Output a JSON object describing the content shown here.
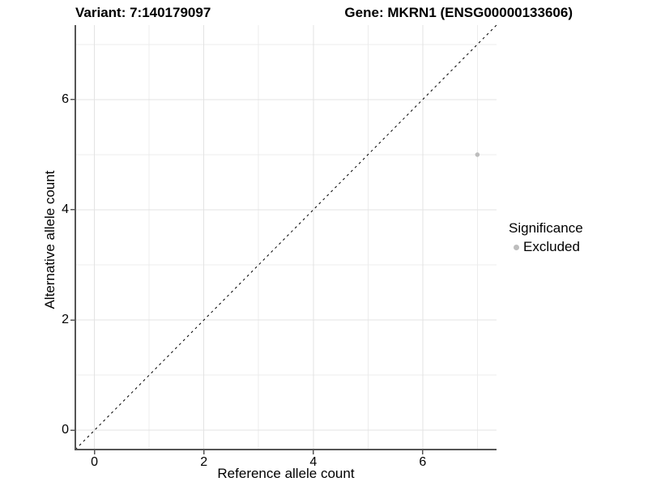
{
  "title": {
    "variant": "Variant: 7:140179097",
    "gene": "Gene: MKRN1 (ENSG00000133606)"
  },
  "axes": {
    "x": {
      "label": "Reference allele count"
    },
    "y": {
      "label": "Alternative allele count"
    }
  },
  "legend": {
    "title": "Significance",
    "items": [
      {
        "label": "Excluded",
        "color": "#bdbdbd"
      }
    ]
  },
  "colors": {
    "grid_major": "#e3e3e3",
    "grid_minor": "#ececec",
    "axis_line": "#555555",
    "tick_mark": "#555555",
    "identity_line": "#000000"
  },
  "chart_data": {
    "type": "scatter",
    "title": "Variant: 7:140179097 | Gene: MKRN1 (ENSG00000133606)",
    "xlabel": "Reference allele count",
    "ylabel": "Alternative allele count",
    "xlim": [
      -0.35,
      7.35
    ],
    "ylim": [
      -0.35,
      7.35
    ],
    "x_ticks": [
      0,
      2,
      4,
      6
    ],
    "y_ticks": [
      0,
      2,
      4,
      6
    ],
    "x_minor_ticks": [
      1,
      3,
      5,
      7
    ],
    "y_minor_ticks": [
      1,
      3,
      5,
      7
    ],
    "grid": "major+minor",
    "legend_position": "right",
    "legend_title": "Significance",
    "series": [
      {
        "name": "Excluded",
        "color": "#bdbdbd",
        "points": [
          {
            "x": 7,
            "y": 5
          }
        ]
      }
    ],
    "reference_line": {
      "equation": "y = x",
      "style": "dashed",
      "color": "#000000"
    }
  }
}
